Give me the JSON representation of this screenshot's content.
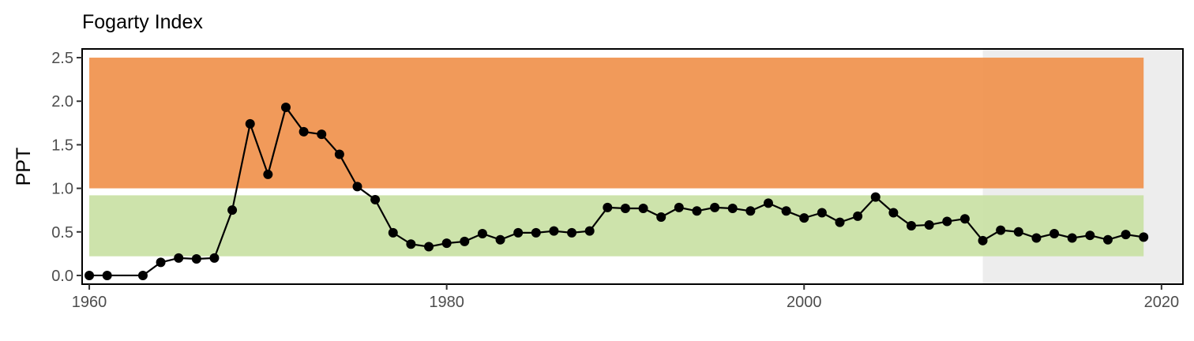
{
  "chart_data": {
    "type": "line",
    "title": "Fogarty Index",
    "xlabel": "",
    "ylabel": "PPT",
    "xlim": [
      1959.6,
      2021.2
    ],
    "ylim": [
      -0.1,
      2.6
    ],
    "x_ticks": [
      1960,
      1980,
      2000,
      2020
    ],
    "y_ticks": [
      0.0,
      0.5,
      1.0,
      1.5,
      2.0,
      2.5
    ],
    "y_tick_labels": [
      "0.0",
      "0.5",
      "1.0",
      "1.5",
      "2.0",
      "2.5"
    ],
    "grid": false,
    "legend": "none",
    "bands": [
      {
        "y_from": 1.0,
        "y_to": 2.5,
        "x_from": 1960,
        "x_to": 2019,
        "color": "#f09551"
      },
      {
        "y_from": 0.22,
        "y_to": 0.92,
        "x_from": 1960,
        "x_to": 2019,
        "color": "#cae2a6"
      }
    ],
    "shaded_period": {
      "x_from": 2010,
      "x_to": 2021.2,
      "color": "#e6e6e6",
      "opacity": 0.7
    },
    "series": [
      {
        "line_color": "#000000",
        "points": [
          [
            1960,
            0.0
          ],
          [
            1961,
            0.0
          ],
          [
            1963,
            0.0
          ],
          [
            1964,
            0.15
          ],
          [
            1965,
            0.2
          ],
          [
            1966,
            0.19
          ],
          [
            1967,
            0.2
          ],
          [
            1968,
            0.75
          ],
          [
            1969,
            1.74
          ],
          [
            1970,
            1.16
          ],
          [
            1971,
            1.93
          ],
          [
            1972,
            1.65
          ],
          [
            1973,
            1.62
          ],
          [
            1974,
            1.39
          ],
          [
            1975,
            1.02
          ],
          [
            1976,
            0.87
          ],
          [
            1977,
            0.49
          ],
          [
            1978,
            0.36
          ],
          [
            1979,
            0.33
          ],
          [
            1980,
            0.37
          ],
          [
            1981,
            0.39
          ],
          [
            1982,
            0.48
          ],
          [
            1983,
            0.41
          ],
          [
            1984,
            0.49
          ],
          [
            1985,
            0.49
          ],
          [
            1986,
            0.51
          ],
          [
            1987,
            0.49
          ],
          [
            1988,
            0.51
          ],
          [
            1989,
            0.78
          ],
          [
            1990,
            0.77
          ],
          [
            1991,
            0.77
          ],
          [
            1992,
            0.67
          ],
          [
            1993,
            0.78
          ],
          [
            1994,
            0.74
          ],
          [
            1995,
            0.78
          ],
          [
            1996,
            0.77
          ],
          [
            1997,
            0.74
          ],
          [
            1998,
            0.83
          ],
          [
            1999,
            0.74
          ],
          [
            2000,
            0.66
          ],
          [
            2001,
            0.72
          ],
          [
            2002,
            0.61
          ],
          [
            2003,
            0.68
          ],
          [
            2004,
            0.9
          ],
          [
            2005,
            0.72
          ],
          [
            2006,
            0.57
          ],
          [
            2007,
            0.58
          ],
          [
            2008,
            0.62
          ],
          [
            2009,
            0.65
          ],
          [
            2010,
            0.4
          ],
          [
            2011,
            0.52
          ],
          [
            2012,
            0.5
          ],
          [
            2013,
            0.43
          ],
          [
            2014,
            0.48
          ],
          [
            2015,
            0.43
          ],
          [
            2016,
            0.46
          ],
          [
            2017,
            0.41
          ],
          [
            2018,
            0.47
          ],
          [
            2019,
            0.44
          ]
        ]
      }
    ]
  }
}
